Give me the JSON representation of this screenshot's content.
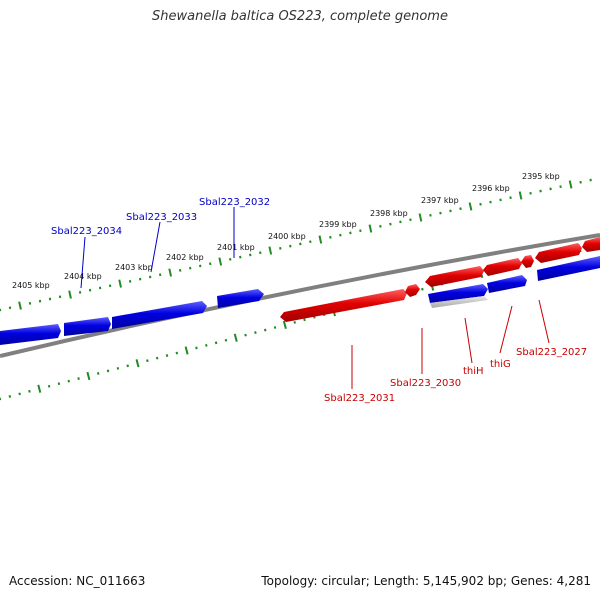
{
  "title": "Shewanella baltica OS223, complete genome",
  "footer": {
    "accession": "Accession: NC_011663",
    "summary": "Topology: circular; Length: 5,145,902 bp; Genes: 4,281"
  },
  "scale_labels": [
    "2395 kbp",
    "2396 kbp",
    "2397 kbp",
    "2398 kbp",
    "2399 kbp",
    "2400 kbp",
    "2401 kbp",
    "2402 kbp",
    "2403 kbp",
    "2404 kbp",
    "2405 kbp"
  ],
  "genes": {
    "forward": [
      "Sbal223_2032",
      "Sbal223_2033",
      "Sbal223_2034"
    ],
    "reverse": [
      "Sbal223_2027",
      "thiG",
      "thiH",
      "Sbal223_2030",
      "Sbal223_2031"
    ]
  },
  "colors": {
    "forward_strand": "#0000e0",
    "reverse_strand": "#e00000",
    "backbone": "#808080",
    "ticks": "#228b22",
    "label_blue": "#0000c8",
    "label_red": "#c80000"
  }
}
